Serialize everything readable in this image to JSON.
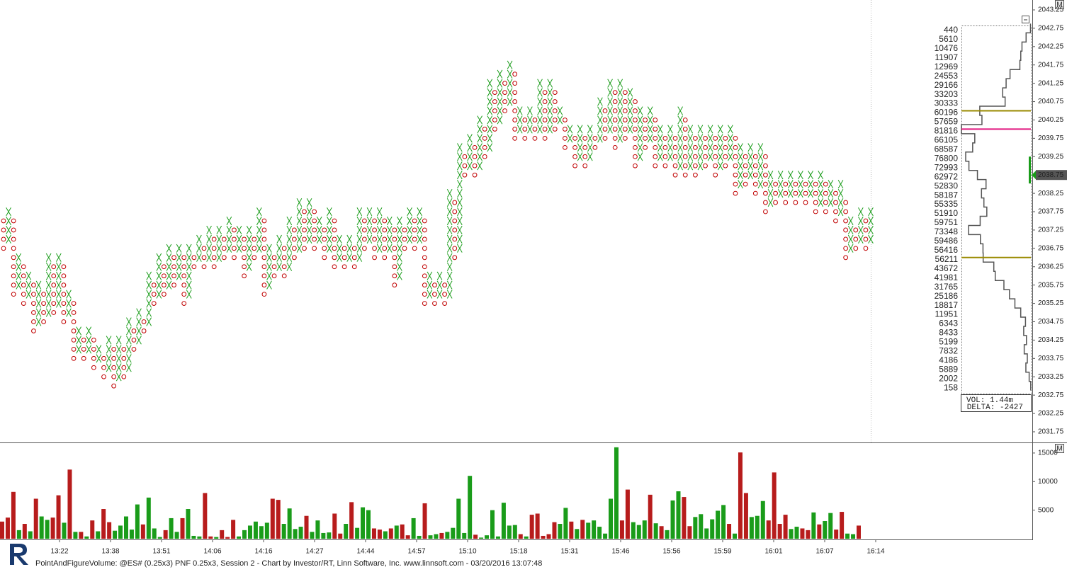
{
  "chart_data": {
    "type": "pnf",
    "footer": "PointAndFigureVolume: @ES# (0.25x3) PNF 0.25x3, Session 2 - Chart by Investor/RT, Linn Software, Inc. www.linnsoft.com - 03/20/2016 13:07:48",
    "panel_button": "M",
    "volume_text": "VOL: 1.44m",
    "delta_text": "DELTA: -2427",
    "box_size": 0.25,
    "first_column": "O",
    "colors": {
      "X": "#1a9c1a",
      "O": "#c00000",
      "R": "#b71c1c",
      "G": "#1a9c1a"
    },
    "ylim": [
      2031.46,
      2043.52
    ],
    "yticks": [
      2031.75,
      2032.25,
      2032.75,
      2033.25,
      2033.75,
      2034.25,
      2034.75,
      2035.25,
      2035.75,
      2036.25,
      2036.75,
      2037.25,
      2037.75,
      2038.25,
      2038.75,
      2039.25,
      2039.75,
      2040.25,
      2040.75,
      2041.25,
      2041.75,
      2042.25,
      2042.75,
      2043.25
    ],
    "current_price": 2038.75,
    "columns": [
      [
        2036.75,
        2037.5
      ],
      [
        2037.0,
        2037.75
      ],
      [
        2035.5,
        2037.5
      ],
      [
        2035.75,
        2036.5
      ],
      [
        2035.25,
        2036.25
      ],
      [
        2035.5,
        2036.0
      ],
      [
        2034.5,
        2035.75
      ],
      [
        2034.75,
        2035.75
      ],
      [
        2034.75,
        2035.5
      ],
      [
        2035.0,
        2036.5
      ],
      [
        2035.0,
        2036.25
      ],
      [
        2035.25,
        2036.5
      ],
      [
        2034.75,
        2036.25
      ],
      [
        2035.0,
        2035.5
      ],
      [
        2033.75,
        2035.25
      ],
      [
        2034.0,
        2034.5
      ],
      [
        2033.75,
        2034.25
      ],
      [
        2034.0,
        2034.5
      ],
      [
        2033.5,
        2034.25
      ],
      [
        2033.75,
        2034.0
      ],
      [
        2033.25,
        2033.75
      ],
      [
        2033.5,
        2034.25
      ],
      [
        2033.0,
        2034.0
      ],
      [
        2033.25,
        2034.25
      ],
      [
        2033.25,
        2034.0
      ],
      [
        2033.5,
        2034.75
      ],
      [
        2034.0,
        2034.5
      ],
      [
        2034.25,
        2035.0
      ],
      [
        2034.5,
        2034.75
      ],
      [
        2034.75,
        2036.0
      ],
      [
        2035.25,
        2035.75
      ],
      [
        2035.5,
        2036.5
      ],
      [
        2035.5,
        2036.25
      ],
      [
        2035.75,
        2036.75
      ],
      [
        2035.75,
        2036.5
      ],
      [
        2036.0,
        2036.75
      ],
      [
        2035.25,
        2036.5
      ],
      [
        2035.5,
        2036.75
      ],
      [
        2036.25,
        2036.5
      ],
      [
        2036.5,
        2037.0
      ],
      [
        2036.25,
        2036.75
      ],
      [
        2036.5,
        2037.25
      ],
      [
        2036.25,
        2037.0
      ],
      [
        2036.5,
        2037.25
      ],
      [
        2036.5,
        2037.0
      ],
      [
        2036.75,
        2037.5
      ],
      [
        2036.5,
        2037.25
      ],
      [
        2036.75,
        2037.25
      ],
      [
        2036.0,
        2037.0
      ],
      [
        2036.25,
        2037.25
      ],
      [
        2036.5,
        2037.0
      ],
      [
        2036.75,
        2037.75
      ],
      [
        2035.5,
        2037.5
      ],
      [
        2035.75,
        2036.75
      ],
      [
        2036.0,
        2036.5
      ],
      [
        2036.25,
        2037.0
      ],
      [
        2036.0,
        2036.75
      ],
      [
        2036.25,
        2037.5
      ],
      [
        2036.5,
        2037.25
      ],
      [
        2036.75,
        2038.0
      ],
      [
        2036.75,
        2037.75
      ],
      [
        2037.0,
        2038.0
      ],
      [
        2036.75,
        2037.75
      ],
      [
        2037.0,
        2037.5
      ],
      [
        2036.5,
        2037.25
      ],
      [
        2036.75,
        2037.75
      ],
      [
        2036.25,
        2037.5
      ],
      [
        2036.5,
        2037.0
      ],
      [
        2036.25,
        2036.75
      ],
      [
        2036.5,
        2037.0
      ],
      [
        2036.25,
        2036.75
      ],
      [
        2036.5,
        2037.75
      ],
      [
        2036.75,
        2037.5
      ],
      [
        2037.0,
        2037.75
      ],
      [
        2036.5,
        2037.5
      ],
      [
        2036.75,
        2037.75
      ],
      [
        2036.5,
        2037.5
      ],
      [
        2036.75,
        2037.5
      ],
      [
        2035.75,
        2037.25
      ],
      [
        2036.0,
        2037.5
      ],
      [
        2036.75,
        2037.25
      ],
      [
        2037.0,
        2037.75
      ],
      [
        2036.75,
        2037.5
      ],
      [
        2037.0,
        2037.75
      ],
      [
        2035.25,
        2037.5
      ],
      [
        2035.5,
        2036.0
      ],
      [
        2035.25,
        2035.75
      ],
      [
        2035.5,
        2036.0
      ],
      [
        2035.25,
        2035.75
      ],
      [
        2035.5,
        2038.25
      ],
      [
        2036.5,
        2038.0
      ],
      [
        2036.75,
        2039.5
      ],
      [
        2038.75,
        2039.25
      ],
      [
        2039.0,
        2039.75
      ],
      [
        2038.75,
        2039.5
      ],
      [
        2039.0,
        2040.25
      ],
      [
        2039.25,
        2040.0
      ],
      [
        2039.5,
        2041.25
      ],
      [
        2040.0,
        2041.0
      ],
      [
        2040.25,
        2041.5
      ],
      [
        2040.5,
        2041.25
      ],
      [
        2040.75,
        2041.75
      ],
      [
        2039.75,
        2041.5
      ],
      [
        2040.0,
        2040.5
      ],
      [
        2039.75,
        2040.25
      ],
      [
        2040.0,
        2040.5
      ],
      [
        2039.75,
        2040.25
      ],
      [
        2040.0,
        2041.25
      ],
      [
        2039.75,
        2041.0
      ],
      [
        2040.0,
        2041.25
      ],
      [
        2040.0,
        2041.0
      ],
      [
        2040.25,
        2040.5
      ],
      [
        2039.5,
        2040.25
      ],
      [
        2039.75,
        2040.0
      ],
      [
        2039.0,
        2039.75
      ],
      [
        2039.25,
        2040.0
      ],
      [
        2039.0,
        2039.75
      ],
      [
        2039.25,
        2040.0
      ],
      [
        2039.5,
        2039.75
      ],
      [
        2039.75,
        2040.75
      ],
      [
        2039.75,
        2040.5
      ],
      [
        2040.0,
        2041.25
      ],
      [
        2039.5,
        2041.0
      ],
      [
        2039.75,
        2041.25
      ],
      [
        2039.75,
        2041.0
      ],
      [
        2040.0,
        2041.0
      ],
      [
        2039.0,
        2040.75
      ],
      [
        2039.25,
        2040.5
      ],
      [
        2039.5,
        2040.25
      ],
      [
        2039.75,
        2040.5
      ],
      [
        2039.0,
        2040.25
      ],
      [
        2039.25,
        2040.0
      ],
      [
        2039.0,
        2039.75
      ],
      [
        2039.25,
        2040.0
      ],
      [
        2038.75,
        2039.75
      ],
      [
        2039.0,
        2040.5
      ],
      [
        2038.75,
        2040.25
      ],
      [
        2039.0,
        2040.0
      ],
      [
        2038.75,
        2039.75
      ],
      [
        2039.0,
        2040.0
      ],
      [
        2039.0,
        2039.75
      ],
      [
        2039.25,
        2040.0
      ],
      [
        2038.75,
        2039.75
      ],
      [
        2039.0,
        2040.0
      ],
      [
        2039.0,
        2039.75
      ],
      [
        2039.25,
        2040.0
      ],
      [
        2038.25,
        2039.75
      ],
      [
        2038.5,
        2039.5
      ],
      [
        2038.5,
        2039.25
      ],
      [
        2038.75,
        2039.5
      ],
      [
        2038.25,
        2039.25
      ],
      [
        2038.5,
        2039.5
      ],
      [
        2037.75,
        2039.25
      ],
      [
        2038.0,
        2038.75
      ],
      [
        2038.0,
        2038.5
      ],
      [
        2038.25,
        2038.75
      ],
      [
        2038.0,
        2038.5
      ],
      [
        2038.25,
        2038.75
      ],
      [
        2038.0,
        2038.5
      ],
      [
        2038.25,
        2038.75
      ],
      [
        2038.0,
        2038.5
      ],
      [
        2038.25,
        2038.75
      ],
      [
        2037.75,
        2038.5
      ],
      [
        2038.0,
        2038.75
      ],
      [
        2037.75,
        2038.5
      ],
      [
        2038.0,
        2038.5
      ],
      [
        2037.5,
        2038.25
      ],
      [
        2037.75,
        2038.5
      ],
      [
        2036.5,
        2038.0
      ],
      [
        2036.75,
        2037.5
      ],
      [
        2036.75,
        2037.25
      ],
      [
        2037.0,
        2037.75
      ],
      [
        2036.75,
        2037.5
      ],
      [
        2037.0,
        2037.75
      ]
    ],
    "time_labels": [
      "13:22",
      "13:38",
      "13:51",
      "14:06",
      "14:16",
      "14:27",
      "14:44",
      "14:57",
      "15:10",
      "15:18",
      "15:31",
      "15:46",
      "15:56",
      "15:59",
      "16:01",
      "16:07",
      "16:14"
    ],
    "profile_top": 2042.75,
    "profile": [
      440,
      5610,
      10476,
      11907,
      12969,
      24553,
      29166,
      33203,
      30333,
      60196,
      57659,
      81816,
      66105,
      68587,
      76800,
      72993,
      62972,
      52830,
      58187,
      55335,
      51910,
      59751,
      73348,
      59486,
      56416,
      56211,
      43672,
      41981,
      31765,
      25186,
      18817,
      11951,
      6343,
      8433,
      5199,
      7832,
      4186,
      5889,
      2002,
      158
    ],
    "value_area_high": 2040.5,
    "poc": 2040.0,
    "value_area_low": 2036.5,
    "volume_ylim": [
      0,
      16600
    ],
    "volume_yticks": [
      5000,
      10000,
      15000
    ],
    "volume": [
      3000,
      3700,
      8200,
      1500,
      2600,
      1300,
      7000,
      3900,
      3300,
      3700,
      7600,
      2800,
      12100,
      1200,
      1200,
      400,
      3200,
      1300,
      5200,
      2900,
      1400,
      2300,
      3900,
      1600,
      6000,
      2500,
      7200,
      1800,
      300,
      1500,
      3600,
      1200,
      3600,
      5200,
      500,
      400,
      8000,
      400,
      300,
      1500,
      300,
      3300,
      400,
      1500,
      2300,
      3000,
      2200,
      2800,
      7000,
      6800,
      2600,
      5300,
      1700,
      2100,
      4000,
      1200,
      3200,
      1000,
      1100,
      4400,
      900,
      2600,
      6400,
      1900,
      5500,
      5000,
      1800,
      1600,
      1300,
      1800,
      2300,
      2500,
      600,
      3600,
      500,
      6200,
      600,
      800,
      1000,
      1200,
      1900,
      7000,
      1000,
      11000,
      700,
      200,
      600,
      5000,
      400,
      6300,
      2300,
      2400,
      800,
      400,
      4200,
      4400,
      500,
      800,
      2900,
      2600,
      5400,
      3000,
      1700,
      3300,
      2800,
      3200,
      2100,
      900,
      7000,
      16000,
      3200,
      8600,
      2900,
      2400,
      3200,
      7700,
      2700,
      2200,
      1500,
      6700,
      8300,
      7300,
      2200,
      3800,
      4300,
      1800,
      3400,
      4900,
      5900,
      2600,
      900,
      15100,
      8000,
      3800,
      4000,
      6600,
      3200,
      11600,
      2600,
      4200,
      1700,
      2100,
      1800,
      1500,
      4600,
      2500,
      3100,
      4500,
      1600,
      4700,
      900,
      800,
      2300
    ],
    "volume_colors": "RRRGRGRGGRRGRGRGRGRRGGGGGRGGGRGGRGGGRRGRRRGGGGGGRRGGGGRGGGGRRGRGGGRRGRGRRGGRGGRGGGGGRGGGGGGGRGRRRRRGGRGRGGGGGGRRGGGRGRGGGRRGGGGGGRGRRGGGRRRRGGRRGRGGRRGGR"
  }
}
